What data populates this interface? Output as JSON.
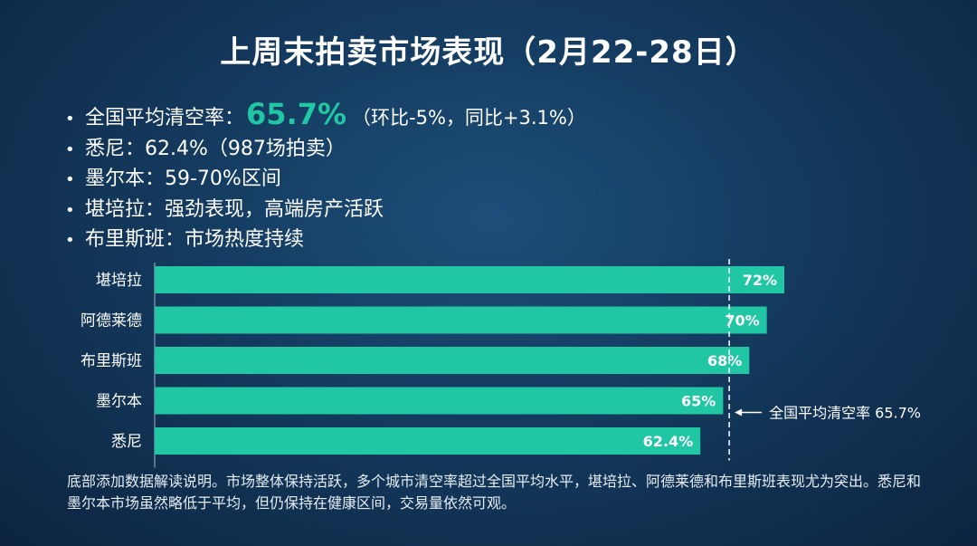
{
  "title": "上周末拍卖市场表现（2月22-28日）",
  "bullets": [
    {
      "prefix": "全国平均清空率：",
      "highlight": "65.7%",
      "suffix": "（环比-5%，同比+3.1%）"
    },
    {
      "prefix": "悉尼：62.4%（987场拍卖）"
    },
    {
      "prefix": "墨尔本：59-70%区间"
    },
    {
      "prefix": "堪培拉：强劲表现，高端房产活跃"
    },
    {
      "prefix": "布里斯班：市场热度持续"
    }
  ],
  "colors": {
    "bar": "#21c7a4",
    "accent": "#21c7a4",
    "text": "#ffffff"
  },
  "chart_data": {
    "type": "bar",
    "orientation": "horizontal",
    "categories": [
      "堪培拉",
      "阿德莱德",
      "布里斯班",
      "墨尔本",
      "悉尼"
    ],
    "values": [
      72,
      70,
      68,
      65,
      62.4
    ],
    "value_labels": [
      "72%",
      "70%",
      "68%",
      "65%",
      "62.4%"
    ],
    "xlim": [
      0,
      72
    ],
    "reference_line": {
      "value": 65.7,
      "label": "全国平均清空率 65.7%",
      "style": "dashed"
    },
    "grid": false
  },
  "note": "底部添加数据解读说明。市场整体保持活跃，多个城市清空率超过全国平均水平，堪培拉、阿德莱德和布里斯班表现尤为突出。悉尼和墨尔本市场虽然略低于平均，但仍保持在健康区间，交易量依然可观。"
}
